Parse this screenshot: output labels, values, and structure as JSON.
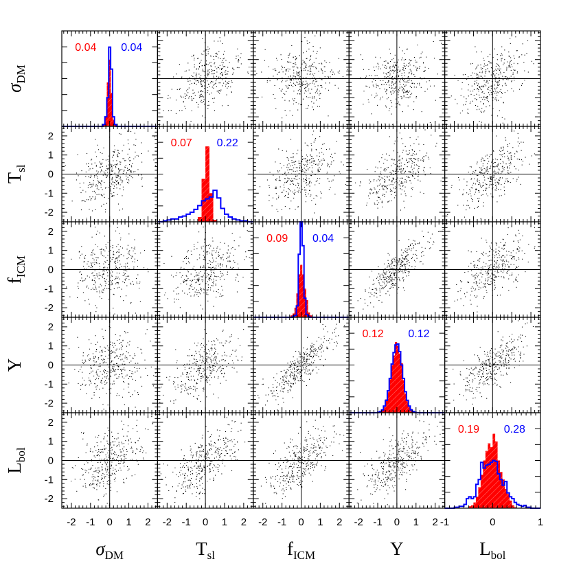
{
  "chart_data": {
    "type": "scatter-matrix",
    "variables": [
      {
        "symbol": "σ",
        "sub": "DM"
      },
      {
        "symbol": "T",
        "sub": "sl"
      },
      {
        "symbol": "f",
        "sub": "ICM"
      },
      {
        "symbol": "Y",
        "sub": ""
      },
      {
        "symbol": "L",
        "sub": "bol"
      }
    ],
    "scatter_range": [
      -2.5,
      2.5
    ],
    "last_diagonal_range": [
      -1,
      1
    ],
    "x_tick_labels": [
      [
        "-2",
        "-1",
        "0",
        "1",
        "2"
      ],
      [
        "-2",
        "-1",
        "0",
        "1",
        "2"
      ],
      [
        "-2",
        "-1",
        "0",
        "1",
        "2"
      ],
      [
        "-2",
        "-1",
        "0",
        "1",
        "2"
      ],
      [
        "-1",
        "0",
        "1"
      ]
    ],
    "y_tick_labels": [
      "-2",
      "-1",
      "0",
      "1",
      "2"
    ],
    "colors": {
      "red": "#ff0000",
      "blue": "#0000ff",
      "points": "#000000"
    },
    "points_per_panel": 350,
    "correlations": [
      [
        1.0,
        0.35,
        0.1,
        0.15,
        0.4
      ],
      [
        0.35,
        1.0,
        0.3,
        0.55,
        0.6
      ],
      [
        0.1,
        0.3,
        1.0,
        0.85,
        0.6
      ],
      [
        0.15,
        0.55,
        0.85,
        1.0,
        0.7
      ],
      [
        0.4,
        0.6,
        0.6,
        0.7,
        1.0
      ]
    ],
    "diagonal": [
      {
        "red_value": "0.04",
        "blue_value": "0.04",
        "bin_start": -0.35,
        "bin_width": 0.1,
        "red": [
          0.02,
          0.1,
          0.46,
          0.7,
          0.35,
          0.07,
          0.02
        ],
        "blue": [
          0.02,
          0.1,
          0.3,
          0.83,
          0.6,
          0.1,
          0.02
        ]
      },
      {
        "red_value": "0.07",
        "blue_value": "0.22",
        "bin_start": -2.2,
        "bin_width": 0.2,
        "red": [
          0,
          0,
          0,
          0,
          0,
          0,
          0,
          0,
          0,
          0.05,
          0.45,
          0.79,
          0.3,
          0.02,
          0,
          0,
          0,
          0,
          0,
          0,
          0,
          0
        ],
        "blue": [
          0.01,
          0.02,
          0.03,
          0.03,
          0.05,
          0.06,
          0.08,
          0.1,
          0.13,
          0.17,
          0.22,
          0.24,
          0.26,
          0.33,
          0.25,
          0.14,
          0.08,
          0.05,
          0.03,
          0.02,
          0.01,
          0.01
        ]
      },
      {
        "red_value": "0.09",
        "blue_value": "0.04",
        "bin_start": -0.55,
        "bin_width": 0.1,
        "red": [
          0.02,
          0.04,
          0.1,
          0.25,
          0.45,
          0.55,
          0.45,
          0.3,
          0.18,
          0.05,
          0.02
        ],
        "blue": [
          0,
          0.01,
          0.02,
          0.12,
          0.66,
          1.05,
          0.75,
          0.2,
          0.03,
          0.01,
          0
        ]
      },
      {
        "red_value": "0.12",
        "blue_value": "0.12",
        "bin_start": -1.0,
        "bin_width": 0.1,
        "red": [
          0.01,
          0.02,
          0.03,
          0.06,
          0.14,
          0.22,
          0.35,
          0.5,
          0.6,
          0.74,
          0.7,
          0.62,
          0.52,
          0.34,
          0.2,
          0.12,
          0.06,
          0.04,
          0.02,
          0.01
        ],
        "blue": [
          0.005,
          0.013,
          0.03,
          0.07,
          0.13,
          0.23,
          0.36,
          0.51,
          0.63,
          0.71,
          0.72,
          0.64,
          0.5,
          0.36,
          0.22,
          0.13,
          0.07,
          0.03,
          0.013,
          0.005
        ]
      },
      {
        "red_value": "0.19",
        "blue_value": "0.28",
        "bin_start": -0.8,
        "bin_width": 0.05,
        "red": [
          0,
          0,
          0,
          0,
          0,
          0,
          0.02,
          0.03,
          0.06,
          0.12,
          0.22,
          0.35,
          0.5,
          0.6,
          0.68,
          0.64,
          0.78,
          0.7,
          0.5,
          0.38,
          0.3,
          0.2,
          0.15,
          0.08,
          0.03,
          0.01,
          0,
          0,
          0,
          0,
          0,
          0
        ],
        "blue": [
          0.01,
          0.01,
          0.02,
          0.02,
          0.04,
          0.1,
          0.12,
          0.1,
          0.12,
          0.25,
          0.3,
          0.48,
          0.42,
          0.45,
          0.46,
          0.48,
          0.5,
          0.49,
          0.36,
          0.3,
          0.24,
          0.28,
          0.16,
          0.12,
          0.1,
          0.06,
          0.04,
          0.03,
          0.02,
          0.03,
          0.01,
          0.01
        ]
      }
    ]
  }
}
